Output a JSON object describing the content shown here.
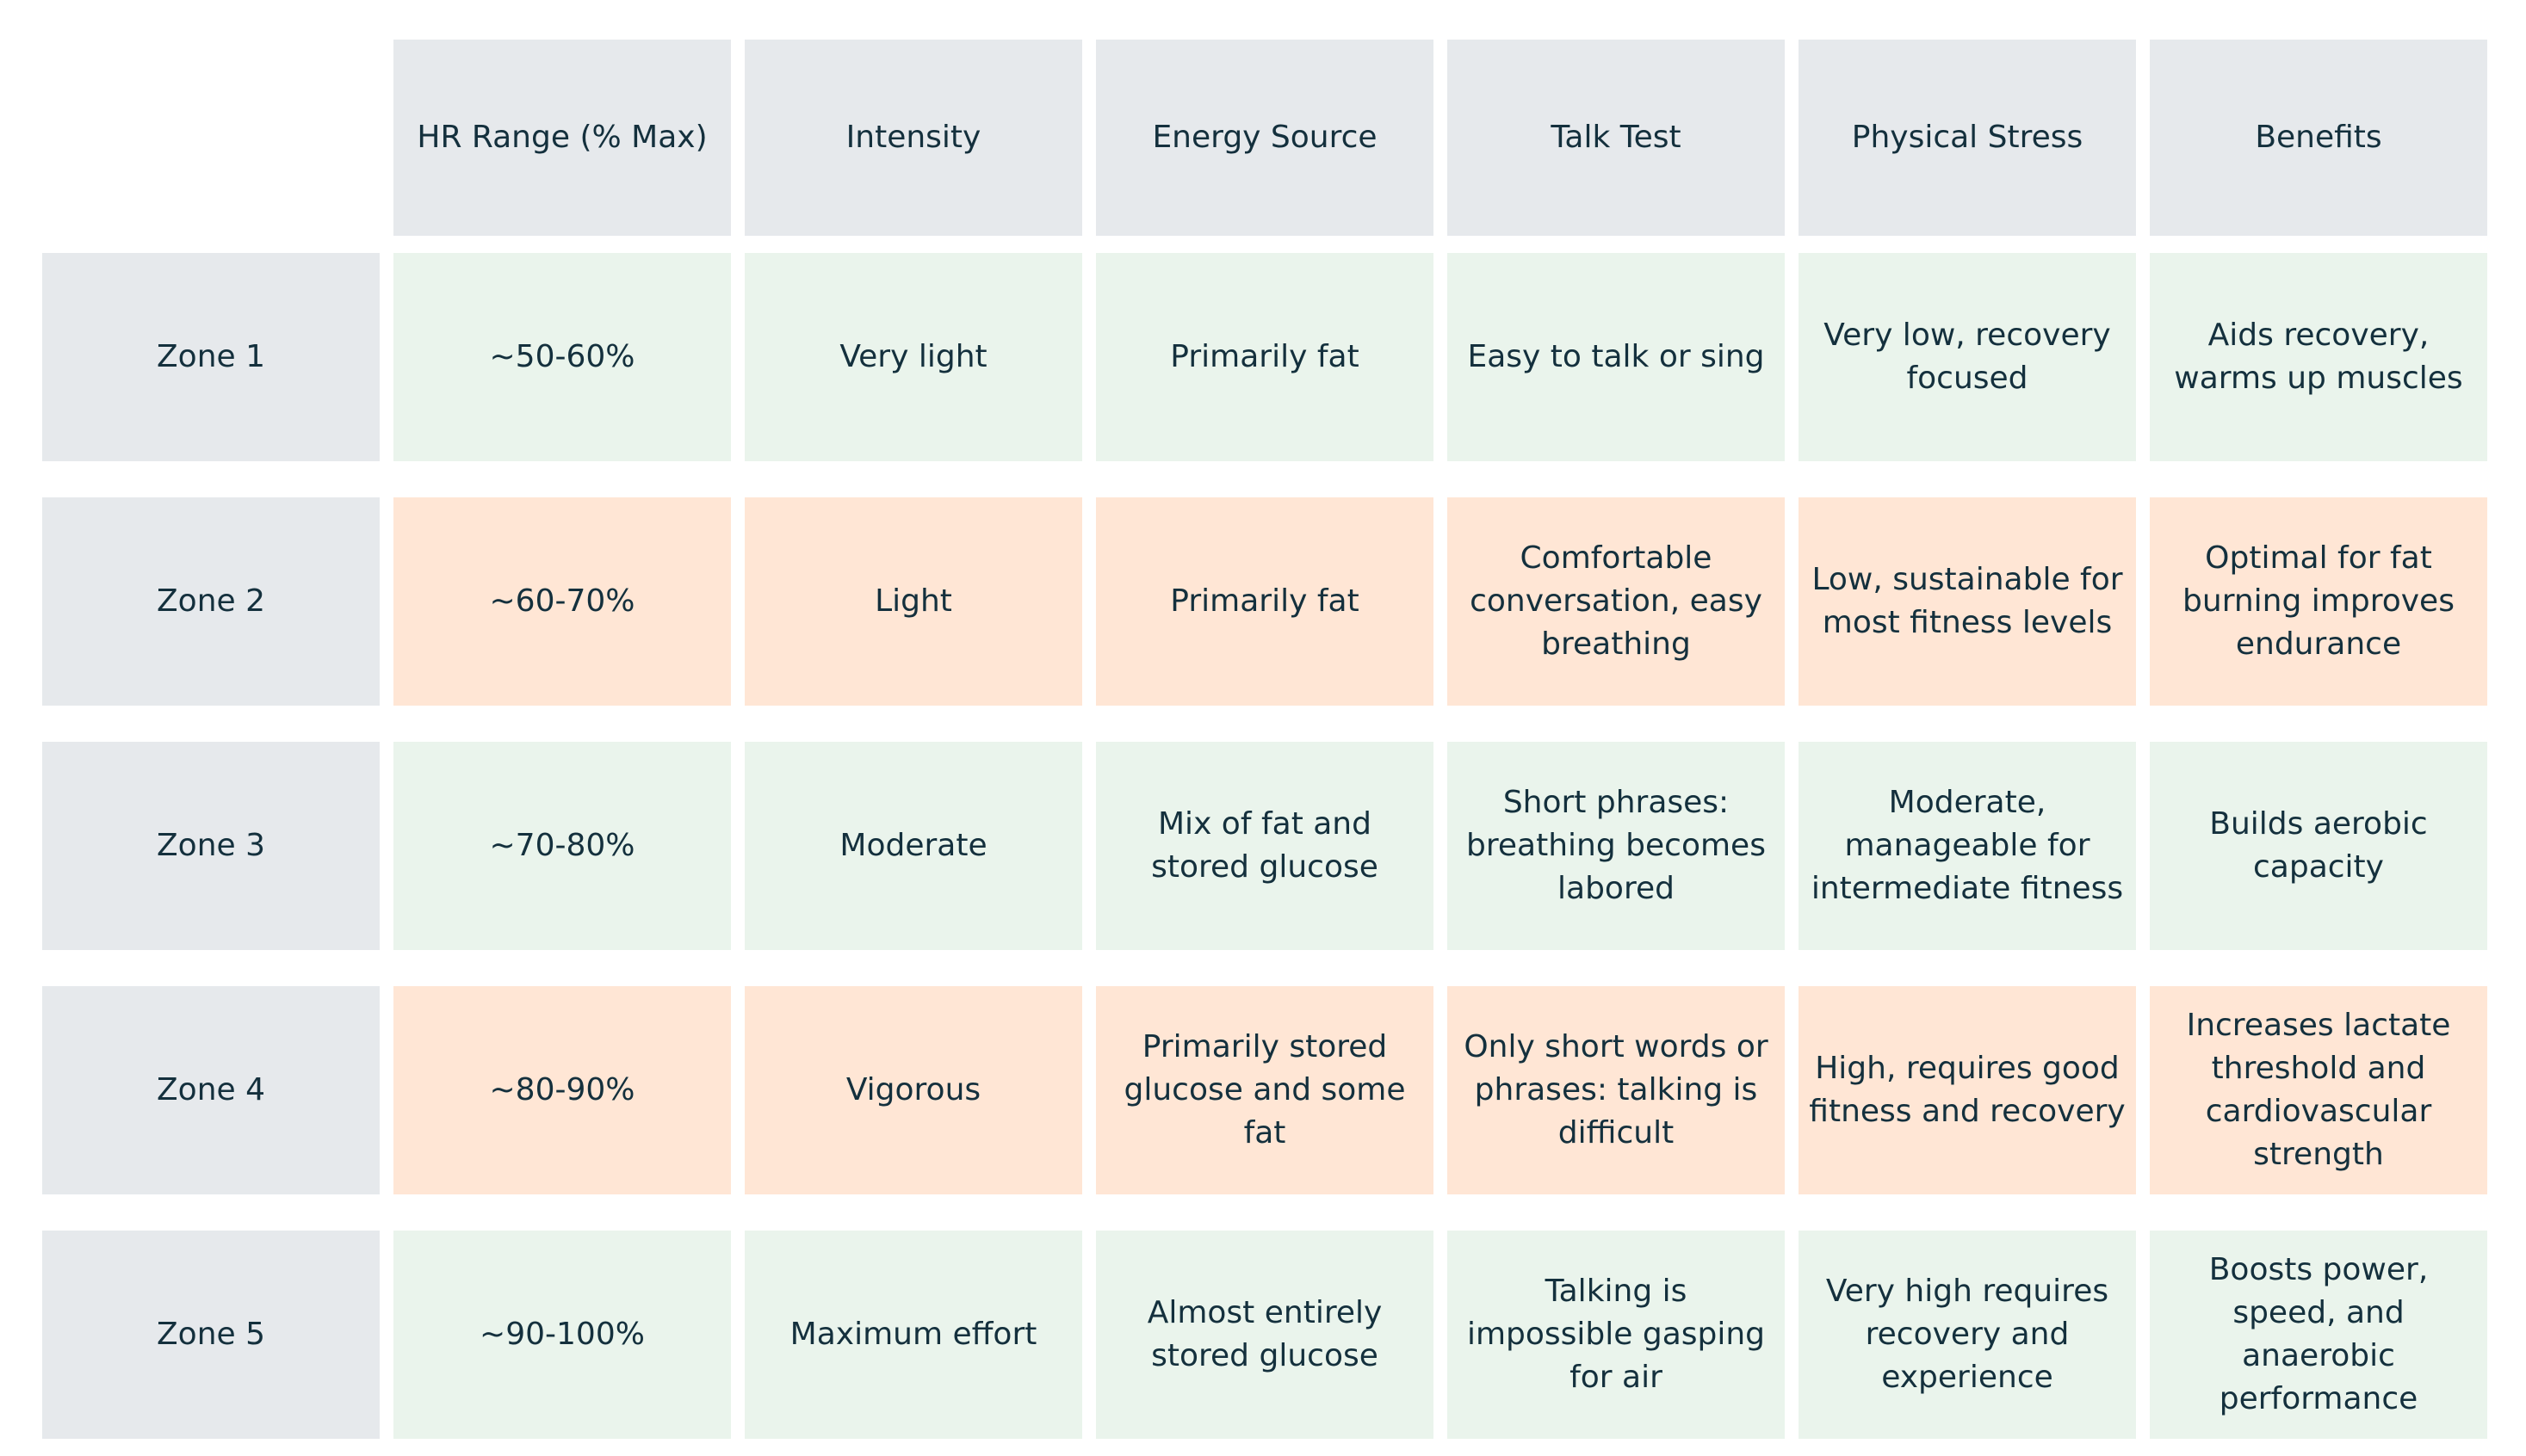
{
  "colors": {
    "header_bg": "#e6e9ec",
    "zone_bg": "#e6e9ec",
    "green_row_bg": "#eaf4ec",
    "peach_row_bg": "#ffe6d5",
    "text": "#14303d"
  },
  "table": {
    "headers": [
      "",
      "HR Range (% Max)",
      "Intensity",
      "Energy Source",
      "Talk Test",
      "Physical Stress",
      "Benefits"
    ],
    "rows": [
      {
        "zone": "Zone 1",
        "hr_range": "~50-60%",
        "intensity": "Very light",
        "energy_source": "Primarily fat",
        "talk_test": "Easy to talk or sing",
        "physical_stress": "Very low, recovery focused",
        "benefits": "Aids recovery, warms up muscles"
      },
      {
        "zone": "Zone 2",
        "hr_range": "~60-70%",
        "intensity": "Light",
        "energy_source": "Primarily fat",
        "talk_test": "Comfortable conversation, easy breathing",
        "physical_stress": "Low, sustainable for most fitness levels",
        "benefits": "Optimal for fat burning improves endurance"
      },
      {
        "zone": "Zone 3",
        "hr_range": "~70-80%",
        "intensity": "Moderate",
        "energy_source": "Mix of fat and stored glucose",
        "talk_test": "Short phrases: breathing becomes labored",
        "physical_stress": "Moderate, manageable for intermediate fitness",
        "benefits": "Builds aerobic capacity"
      },
      {
        "zone": "Zone 4",
        "hr_range": "~80-90%",
        "intensity": "Vigorous",
        "energy_source": "Primarily stored glucose and some fat",
        "talk_test": "Only short words or phrases: talking is difficult",
        "physical_stress": "High, requires good fitness and recovery",
        "benefits": "Increases lactate threshold and cardiovascular strength"
      },
      {
        "zone": "Zone 5",
        "hr_range": "~90-100%",
        "intensity": "Maximum effort",
        "energy_source": "Almost entirely stored glucose",
        "talk_test": "Talking is impossible gasping for air",
        "physical_stress": "Very high requires recovery and experience",
        "benefits": "Boosts power, speed, and anaerobic performance"
      }
    ]
  }
}
